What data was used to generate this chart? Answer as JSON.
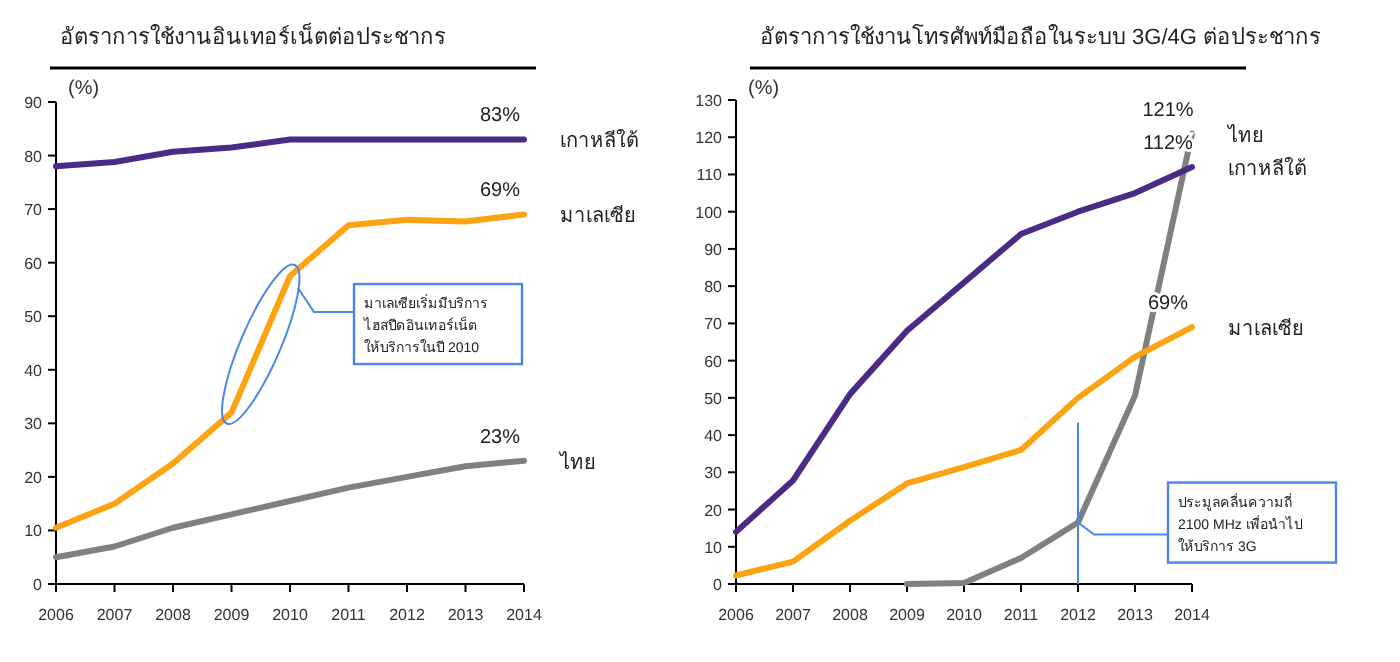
{
  "chart_data": [
    {
      "type": "line",
      "title": "อัตราการใช้งานอินเทอร์เน็ตต่อประชากร",
      "ylabel": "(%)",
      "categories": [
        "2006",
        "2007",
        "2008",
        "2009",
        "2010",
        "2011",
        "2012",
        "2013",
        "2014"
      ],
      "series": [
        {
          "name": "เกาหลีใต้",
          "color": "#4b2a86",
          "values": [
            78,
            78.8,
            80.7,
            81.5,
            83,
            83,
            83,
            83,
            83
          ]
        },
        {
          "name": "มาเลเซีย",
          "color": "#fca311",
          "values": [
            10.5,
            15,
            22.5,
            32,
            57.5,
            67,
            68,
            67.7,
            69
          ]
        },
        {
          "name": "ไทย",
          "color": "#808080",
          "values": [
            5,
            7,
            10.5,
            13,
            15.5,
            18,
            20,
            22,
            23
          ]
        }
      ],
      "ylim": [
        0,
        90
      ],
      "yticks": [
        0,
        10,
        20,
        30,
        40,
        50,
        60,
        70,
        80,
        90
      ],
      "annotations": [
        {
          "text": "83%",
          "x": "2014",
          "y": 83
        },
        {
          "text": "69%",
          "x": "2014",
          "y": 69
        },
        {
          "text": "23%",
          "x": "2014",
          "y": 23
        },
        {
          "text": "มาเลเซียเริ่มมีบริการ ไฮสปีดอินเทอร์เน็ต ให้บริการในปี 2010",
          "x": "2010",
          "y": 57.5
        }
      ]
    },
    {
      "type": "line",
      "title": "อัตราการใช้งานโทรศัพท์มือถือในระบบ 3G/4G ต่อประชากร",
      "ylabel": "(%)",
      "categories": [
        "2006",
        "2007",
        "2008",
        "2009",
        "2010",
        "2011",
        "2012",
        "2013",
        "2014"
      ],
      "series": [
        {
          "name": "ไทย",
          "color": "#808080",
          "values": [
            null,
            null,
            null,
            0,
            0.3,
            7,
            16.5,
            50.6,
            121
          ]
        },
        {
          "name": "เกาหลีใต้",
          "color": "#4b2a86",
          "values": [
            14,
            27.8,
            51,
            68,
            81,
            94,
            100,
            105,
            112
          ]
        },
        {
          "name": "มาเลเซีย",
          "color": "#fca311",
          "values": [
            2.3,
            6,
            17,
            27,
            31.4,
            36,
            50,
            61,
            69
          ]
        }
      ],
      "ylim": [
        0,
        130
      ],
      "yticks": [
        0,
        10,
        20,
        30,
        40,
        50,
        60,
        70,
        80,
        90,
        100,
        110,
        120,
        130
      ],
      "annotations": [
        {
          "text": "121%",
          "x": "2014",
          "y": 121
        },
        {
          "text": "112%",
          "x": "2014",
          "y": 112
        },
        {
          "text": "69%",
          "x": "2014",
          "y": 69
        },
        {
          "text": "ประมูลคลื่นความถี่ 2100 MHz เพื่อนำไป ให้บริการ 3G",
          "x": "2012",
          "y": 16.5
        }
      ]
    }
  ]
}
